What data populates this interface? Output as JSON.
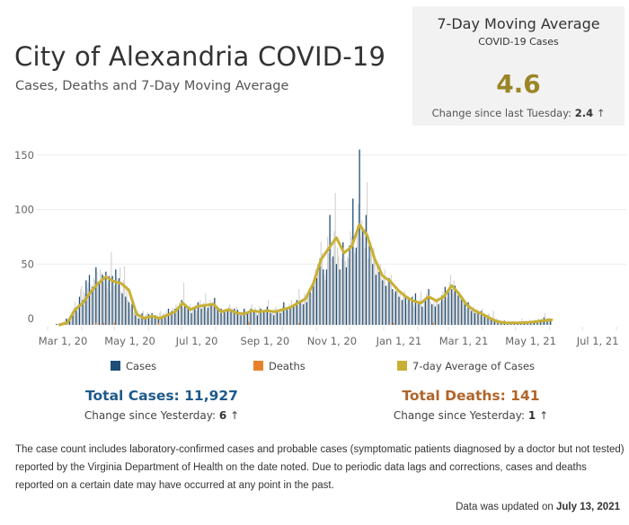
{
  "header": {
    "title": "City of Alexandria COVID-19",
    "subtitle": "Cases, Deaths and 7-Day Moving Average"
  },
  "kpi": {
    "title": "7-Day Moving Average",
    "subtitle": "COVID-19 Cases",
    "value": "4.6",
    "change_label": "Change since last Tuesday:",
    "change_value": "2.4",
    "change_icon": "arrow-up-icon",
    "value_color": "#9b8527"
  },
  "legend": [
    {
      "label": "Cases",
      "color": "#1f4e79"
    },
    {
      "label": "Deaths",
      "color": "#e8822a"
    },
    {
      "label": "7-day Average of Cases",
      "color": "#c9b034"
    }
  ],
  "totals": {
    "cases_label": "Total Cases: 11,927",
    "cases_color": "#1f5a8c",
    "cases_change_label": "Change since Yesterday:",
    "cases_change_value": "6",
    "deaths_label": "Total Deaths: 141",
    "deaths_color": "#b0652a",
    "deaths_change_label": "Change since Yesterday:",
    "deaths_change_value": "1"
  },
  "note": "The case count includes laboratory-confirmed cases and probable cases (symptomatic patients diagnosed by a doctor but not tested) reported by the Virginia Department of Health on the date noted. Due to periodic data lags and corrections, cases and deaths reported on a certain date may have occurred at any point in the past.",
  "updated": {
    "label": "Data was updated on",
    "date": "July 13, 2021"
  },
  "chart_data": {
    "type": "bar",
    "title": "Cases, Deaths and 7-Day Moving Average",
    "xlabel": "",
    "ylabel": "",
    "ylim": [
      0,
      160
    ],
    "yticks": [
      0,
      50,
      100,
      150
    ],
    "xticks": [
      "Mar 1, 20",
      "May 1, 20",
      "Jul 1, 20",
      "Sep 1, 20",
      "Nov 1, 20",
      "Jan 1, 21",
      "Mar 1, 21",
      "May 1, 21",
      "Jul 1, 21"
    ],
    "x_start": "2020-03-01",
    "grid": true,
    "legend_position": "bottom",
    "series": [
      {
        "name": "Cases",
        "type": "bar",
        "color": "#1f4e79",
        "week_start": "2020-03-09",
        "weekly_daily_values": [
          [
            0,
            0,
            1,
            0,
            1,
            2,
            1
          ],
          [
            3,
            2,
            5,
            4,
            3,
            6,
            5
          ],
          [
            8,
            12,
            15,
            20,
            14,
            10,
            18
          ],
          [
            25,
            32,
            35,
            22,
            30,
            28,
            40
          ],
          [
            33,
            38,
            45,
            30,
            36,
            34,
            42
          ],
          [
            40,
            52,
            48,
            35,
            38,
            50,
            47
          ],
          [
            45,
            38,
            42,
            48,
            33,
            40,
            44
          ],
          [
            30,
            66,
            44,
            38,
            35,
            50,
            42
          ],
          [
            36,
            42,
            52,
            30,
            28,
            40,
            53
          ],
          [
            25,
            35,
            22,
            20,
            15,
            18,
            22
          ],
          [
            10,
            12,
            8,
            6,
            12,
            5,
            9
          ],
          [
            8,
            10,
            12,
            6,
            7,
            9,
            11
          ],
          [
            9,
            6,
            8,
            10,
            7,
            5,
            8
          ],
          [
            6,
            8,
            5,
            10,
            12,
            7,
            9
          ],
          [
            10,
            8,
            12,
            6,
            14,
            9,
            10
          ],
          [
            12,
            15,
            9,
            14,
            18,
            11,
            16
          ],
          [
            20,
            16,
            22,
            14,
            38,
            18,
            15
          ],
          [
            16,
            14,
            12,
            18,
            10,
            15,
            14
          ],
          [
            15,
            18,
            12,
            20,
            16,
            22,
            14
          ],
          [
            18,
            20,
            16,
            28,
            12,
            15,
            18
          ],
          [
            22,
            18,
            20,
            16,
            24,
            19,
            14
          ],
          [
            15,
            10,
            12,
            14,
            8,
            11,
            13
          ],
          [
            10,
            14,
            12,
            16,
            18,
            12,
            15
          ],
          [
            12,
            14,
            10,
            16,
            13,
            11,
            9
          ],
          [
            8,
            10,
            12,
            14,
            9,
            11,
            10
          ],
          [
            10,
            12,
            14,
            18,
            13,
            12,
            15
          ],
          [
            10,
            8,
            12,
            16,
            14,
            10,
            12
          ],
          [
            12,
            10,
            14,
            16,
            22,
            12,
            10
          ],
          [
            10,
            12,
            8,
            14,
            16,
            12,
            11
          ],
          [
            14,
            10,
            12,
            16,
            20,
            14,
            15
          ],
          [
            15,
            12,
            18,
            14,
            22,
            16,
            18
          ],
          [
            18,
            20,
            22,
            16,
            32,
            20,
            18
          ],
          [
            22,
            18,
            28,
            24,
            20,
            30,
            26
          ],
          [
            32,
            28,
            35,
            40,
            45,
            50,
            42
          ],
          [
            55,
            48,
            60,
            75,
            65,
            50,
            45
          ],
          [
            40,
            50,
            80,
            65,
            100,
            70,
            60
          ],
          [
            62,
            85,
            120,
            55,
            70,
            62,
            50
          ],
          [
            50,
            60,
            75,
            68,
            58,
            52,
            62
          ],
          [
            60,
            72,
            85,
            80,
            115,
            70,
            65
          ],
          [
            70,
            90,
            110,
            160,
            80,
            95,
            88
          ],
          [
            85,
            70,
            100,
            130,
            60,
            75,
            68
          ],
          [
            65,
            55,
            70,
            60,
            45,
            52,
            48
          ],
          [
            48,
            55,
            42,
            40,
            45,
            50,
            35
          ],
          [
            35,
            40,
            42,
            38,
            45,
            32,
            30
          ],
          [
            28,
            30,
            35,
            32,
            25,
            30,
            22
          ],
          [
            22,
            28,
            30,
            25,
            18,
            26,
            24
          ],
          [
            20,
            22,
            25,
            18,
            16,
            28,
            20
          ],
          [
            18,
            20,
            22,
            30,
            16,
            14,
            20
          ],
          [
            22,
            28,
            25,
            32,
            26,
            20,
            18
          ],
          [
            18,
            20,
            16,
            22,
            24,
            18,
            20
          ],
          [
            20,
            26,
            30,
            22,
            34,
            28,
            24
          ],
          [
            30,
            38,
            45,
            32,
            28,
            40,
            35
          ],
          [
            28,
            32,
            26,
            30,
            24,
            22,
            20
          ],
          [
            20,
            18,
            16,
            14,
            20,
            18,
            15
          ],
          [
            12,
            14,
            16,
            10,
            12,
            14,
            10
          ],
          [
            10,
            8,
            12,
            14,
            9,
            8,
            6
          ],
          [
            6,
            8,
            10,
            5,
            4,
            6,
            12
          ],
          [
            4,
            3,
            5,
            2,
            4,
            3,
            2
          ],
          [
            2,
            1,
            3,
            2,
            1,
            2,
            2
          ],
          [
            1,
            2,
            1,
            3,
            2,
            1,
            2
          ],
          [
            2,
            1,
            3,
            1,
            5,
            2,
            1
          ],
          [
            2,
            3,
            1,
            2,
            4,
            2,
            3
          ],
          [
            3,
            2,
            4,
            3,
            2,
            5,
            3
          ],
          [
            4,
            5,
            3,
            6,
            10,
            4,
            5
          ],
          [
            5,
            6,
            4
          ]
        ]
      },
      {
        "name": "Deaths",
        "type": "bar",
        "color": "#e8822a",
        "note": "Daily deaths mostly 0-3; shown as small marks near baseline",
        "points": [
          {
            "date": "2020-04-14",
            "value": 2
          },
          {
            "date": "2020-04-21",
            "value": 2
          },
          {
            "date": "2020-05-01",
            "value": 3
          },
          {
            "date": "2020-06-10",
            "value": 2
          },
          {
            "date": "2020-08-31",
            "value": 4
          },
          {
            "date": "2020-10-16",
            "value": 2
          },
          {
            "date": "2021-01-10",
            "value": 2
          },
          {
            "date": "2021-02-15",
            "value": 2
          }
        ]
      },
      {
        "name": "7-day Average of Cases",
        "type": "line",
        "color": "#c9b034",
        "week_start": "2020-03-09",
        "weekly_values": [
          0,
          2,
          14,
          20,
          30,
          38,
          44,
          40,
          38,
          32,
          10,
          6,
          8,
          6,
          9,
          12,
          20,
          14,
          17,
          18,
          19,
          12,
          14,
          11,
          10,
          13,
          12,
          13,
          12,
          14,
          16,
          20,
          24,
          38,
          60,
          70,
          80,
          66,
          72,
          92,
          82,
          60,
          45,
          40,
          32,
          26,
          22,
          20,
          26,
          22,
          26,
          36,
          28,
          18,
          13,
          10,
          6,
          3,
          2,
          1.8,
          2,
          2.3,
          3,
          4,
          4.6
        ]
      }
    ]
  }
}
